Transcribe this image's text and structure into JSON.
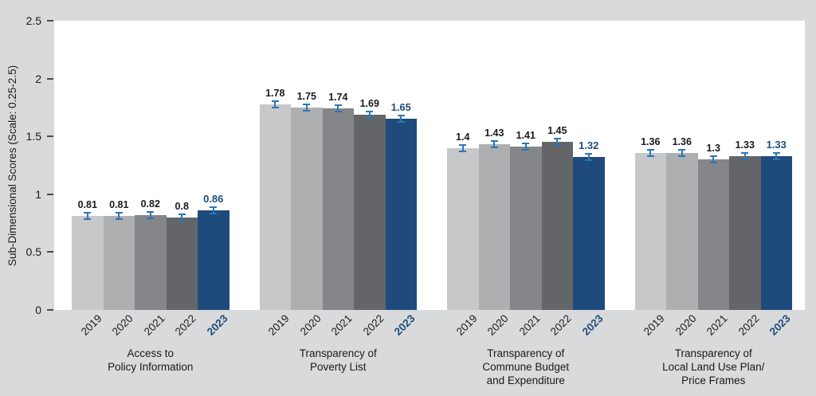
{
  "chart_data": {
    "type": "bar",
    "title": "",
    "ylabel": "Sub-Dimensional Scores (Scale: 0.25-2.5)",
    "xlabel": "",
    "ylim": [
      0,
      2.5
    ],
    "ytick_values": [
      0,
      0.5,
      1,
      1.5,
      2,
      2.5
    ],
    "ytick_labels": [
      "0",
      "0.5",
      "1",
      "1.5",
      "2",
      "2.5"
    ],
    "grid": false,
    "legend": "none",
    "categories": [
      "2019",
      "2020",
      "2021",
      "2022",
      "2023"
    ],
    "highlight_category": "2023",
    "error_bars": {
      "shown_on_every_bar": true,
      "approx_half_width": 0.03,
      "color": "#2e75b6"
    },
    "colors": {
      "2019": "#c7c8ca",
      "2020": "#aeafb1",
      "2021": "#85868a",
      "2022": "#646569",
      "2023": "#1f4b7c",
      "highlight_text": "#1f4e79",
      "axis_text": "#1a1a1a",
      "background": "#d9dadb",
      "plot_background": "#ffffff"
    },
    "groups": [
      {
        "label_lines": [
          "Access to",
          "Policy Information"
        ],
        "values": [
          0.81,
          0.81,
          0.82,
          0.8,
          0.86
        ],
        "value_labels": [
          "0.81",
          "0.81",
          "0.82",
          "0.8",
          "0.86"
        ]
      },
      {
        "label_lines": [
          "Transparency of",
          "Poverty List"
        ],
        "values": [
          1.78,
          1.75,
          1.74,
          1.69,
          1.65
        ],
        "value_labels": [
          "1.78",
          "1.75",
          "1.74",
          "1.69",
          "1.65"
        ]
      },
      {
        "label_lines": [
          "Transparency of",
          "Commune Budget",
          "and Expenditure"
        ],
        "values": [
          1.4,
          1.43,
          1.41,
          1.45,
          1.32
        ],
        "value_labels": [
          "1.4",
          "1.43",
          "1.41",
          "1.45",
          "1.32"
        ]
      },
      {
        "label_lines": [
          "Transparency of",
          "Local Land Use Plan/",
          "Price Frames"
        ],
        "values": [
          1.36,
          1.36,
          1.3,
          1.33,
          1.33
        ],
        "value_labels": [
          "1.36",
          "1.36",
          "1.3",
          "1.33",
          "1.33"
        ]
      }
    ]
  }
}
